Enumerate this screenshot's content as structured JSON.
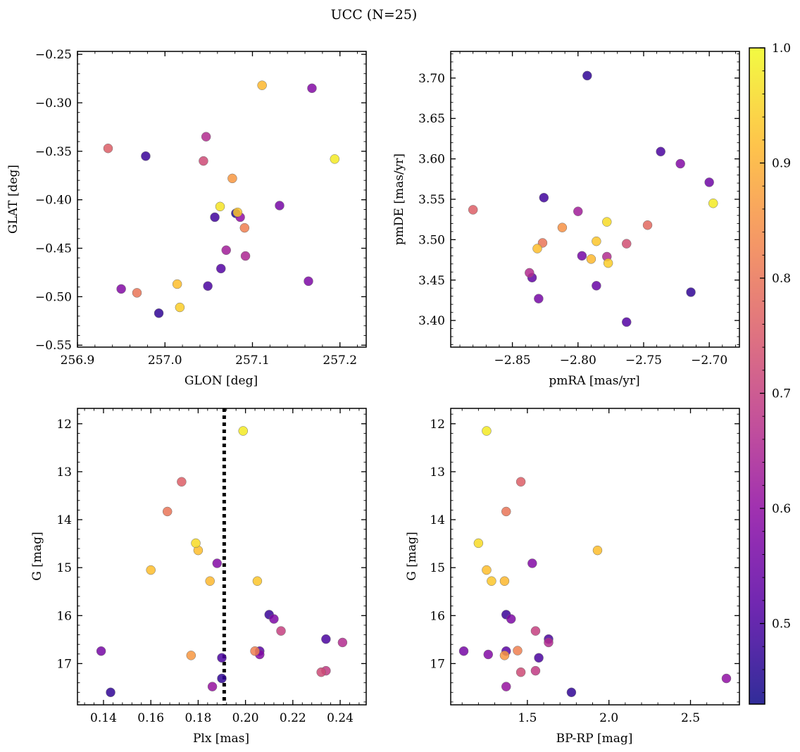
{
  "title": "UCC (N=25)",
  "colorbar": {
    "cmap": "plasma",
    "range": [
      0.43,
      1.0
    ],
    "ticks": [
      0.5,
      0.6,
      0.7,
      0.8,
      0.9,
      1.0
    ],
    "tick_labels": [
      "0.5",
      "0.6",
      "0.7",
      "0.8",
      "0.9",
      "1.0"
    ]
  },
  "chart_data": [
    {
      "type": "scatter",
      "name": "glon-glat",
      "xlabel": "GLON [deg]",
      "ylabel": "GLAT [deg]",
      "xlim": [
        256.9,
        257.23
      ],
      "ylim": [
        -0.552,
        -0.247
      ],
      "y_inverted": false,
      "xticks": [
        256.9,
        257.0,
        257.1,
        257.2
      ],
      "xtick_labels": [
        "256.9",
        "257.0",
        "257.1",
        "257.2"
      ],
      "yticks": [
        -0.25,
        -0.3,
        -0.35,
        -0.4,
        -0.45,
        -0.5,
        -0.55
      ],
      "ytick_labels": [
        "−0.25",
        "−0.30",
        "−0.35",
        "−0.40",
        "−0.45",
        "−0.50",
        "−0.55"
      ],
      "x": [
        256.935,
        256.978,
        256.95,
        256.968,
        256.993,
        257.014,
        257.017,
        257.044,
        257.047,
        257.049,
        257.057,
        257.063,
        257.064,
        257.07,
        257.077,
        257.081,
        257.083,
        257.086,
        257.091,
        257.092,
        257.111,
        257.131,
        257.164,
        257.168,
        257.194
      ],
      "y": [
        -0.347,
        -0.355,
        -0.492,
        -0.496,
        -0.517,
        -0.487,
        -0.511,
        -0.36,
        -0.335,
        -0.489,
        -0.418,
        -0.407,
        -0.471,
        -0.452,
        -0.378,
        -0.414,
        -0.413,
        -0.418,
        -0.429,
        -0.458,
        -0.282,
        -0.406,
        -0.484,
        -0.285,
        -0.358
      ],
      "c": [
        0.76,
        0.48,
        0.58,
        0.8,
        0.47,
        0.92,
        0.94,
        0.72,
        0.66,
        0.5,
        0.49,
        0.97,
        0.51,
        0.63,
        0.86,
        0.45,
        0.93,
        0.6,
        0.82,
        0.65,
        0.91,
        0.56,
        0.57,
        0.58,
        0.98
      ]
    },
    {
      "type": "scatter",
      "name": "pmra-pmde",
      "xlabel": "pmRA [mas/yr]",
      "ylabel": "pmDE [mas/yr]",
      "xlim": [
        -2.897,
        -2.677
      ],
      "ylim": [
        3.367,
        3.733
      ],
      "y_inverted": false,
      "xticks": [
        -2.85,
        -2.8,
        -2.75,
        -2.7
      ],
      "xtick_labels": [
        "−2.85",
        "−2.80",
        "−2.75",
        "−2.70"
      ],
      "yticks": [
        3.4,
        3.45,
        3.5,
        3.55,
        3.6,
        3.65,
        3.7
      ],
      "ytick_labels": [
        "3.40",
        "3.45",
        "3.50",
        "3.55",
        "3.60",
        "3.65",
        "3.70"
      ],
      "x": [
        -2.793,
        -2.737,
        -2.722,
        -2.7,
        -2.697,
        -2.826,
        -2.88,
        -2.8,
        -2.812,
        -2.827,
        -2.831,
        -2.837,
        -2.835,
        -2.83,
        -2.797,
        -2.79,
        -2.786,
        -2.778,
        -2.778,
        -2.777,
        -2.763,
        -2.747,
        -2.786,
        -2.714,
        -2.763
      ],
      "y": [
        3.703,
        3.609,
        3.594,
        3.571,
        3.545,
        3.552,
        3.537,
        3.535,
        3.515,
        3.496,
        3.489,
        3.459,
        3.453,
        3.427,
        3.48,
        3.476,
        3.498,
        3.522,
        3.479,
        3.471,
        3.495,
        3.518,
        3.443,
        3.435,
        3.398
      ],
      "c": [
        0.47,
        0.5,
        0.58,
        0.55,
        0.98,
        0.49,
        0.76,
        0.63,
        0.85,
        0.8,
        0.92,
        0.66,
        0.53,
        0.56,
        0.56,
        0.91,
        0.93,
        0.96,
        0.66,
        0.94,
        0.73,
        0.78,
        0.54,
        0.47,
        0.51
      ]
    },
    {
      "type": "scatter",
      "name": "plx-g",
      "xlabel": "Plx [mas]",
      "ylabel": "G [mag]",
      "xlim": [
        0.129,
        0.251
      ],
      "ylim": [
        11.68,
        17.86
      ],
      "y_inverted": true,
      "xticks": [
        0.14,
        0.16,
        0.18,
        0.2,
        0.22,
        0.24
      ],
      "xtick_labels": [
        "0.14",
        "0.16",
        "0.18",
        "0.20",
        "0.22",
        "0.24"
      ],
      "yticks": [
        12,
        13,
        14,
        15,
        16,
        17
      ],
      "ytick_labels": [
        "12",
        "13",
        "14",
        "15",
        "16",
        "17"
      ],
      "reference_line": {
        "axis": "x",
        "value": 0.191,
        "style": "dotted"
      },
      "x": [
        0.199,
        0.173,
        0.167,
        0.179,
        0.18,
        0.16,
        0.185,
        0.188,
        0.205,
        0.21,
        0.212,
        0.215,
        0.234,
        0.241,
        0.139,
        0.177,
        0.204,
        0.206,
        0.206,
        0.232,
        0.234,
        0.19,
        0.19,
        0.186,
        0.143
      ],
      "y": [
        12.15,
        13.21,
        13.83,
        14.49,
        14.64,
        15.05,
        15.28,
        14.91,
        15.28,
        15.98,
        16.07,
        16.32,
        16.49,
        16.56,
        16.74,
        16.83,
        16.74,
        16.74,
        16.81,
        17.18,
        17.15,
        16.88,
        17.31,
        17.48,
        17.6
      ],
      "c": [
        0.98,
        0.76,
        0.8,
        0.96,
        0.92,
        0.92,
        0.91,
        0.58,
        0.93,
        0.48,
        0.57,
        0.7,
        0.5,
        0.66,
        0.56,
        0.86,
        0.82,
        0.52,
        0.58,
        0.72,
        0.69,
        0.5,
        0.47,
        0.61,
        0.47
      ]
    },
    {
      "type": "scatter",
      "name": "bprp-g",
      "xlabel": "BP-RP [mag]",
      "ylabel": "G [mag]",
      "xlim": [
        1.03,
        2.8
      ],
      "ylim": [
        11.68,
        17.86
      ],
      "y_inverted": true,
      "xticks": [
        1.5,
        2.0,
        2.5
      ],
      "xtick_labels": [
        "1.5",
        "2.0",
        "2.5"
      ],
      "yticks": [
        12,
        13,
        14,
        15,
        16,
        17
      ],
      "ytick_labels": [
        "12",
        "13",
        "14",
        "15",
        "16",
        "17"
      ],
      "x": [
        1.25,
        1.46,
        1.37,
        1.2,
        1.93,
        1.25,
        1.28,
        1.36,
        1.53,
        1.37,
        1.4,
        1.55,
        1.63,
        1.63,
        1.11,
        1.26,
        1.37,
        1.44,
        1.36,
        1.46,
        1.55,
        1.57,
        2.72,
        1.37,
        1.77
      ],
      "y": [
        12.15,
        13.21,
        13.83,
        14.49,
        14.64,
        15.05,
        15.28,
        15.28,
        14.91,
        15.98,
        16.07,
        16.32,
        16.49,
        16.56,
        16.74,
        16.81,
        16.74,
        16.73,
        16.83,
        17.18,
        17.15,
        16.88,
        17.31,
        17.48,
        17.6
      ],
      "c": [
        0.98,
        0.76,
        0.8,
        0.96,
        0.92,
        0.92,
        0.93,
        0.91,
        0.58,
        0.48,
        0.57,
        0.7,
        0.5,
        0.66,
        0.56,
        0.58,
        0.52,
        0.82,
        0.86,
        0.72,
        0.69,
        0.5,
        0.6,
        0.61,
        0.47
      ]
    }
  ]
}
